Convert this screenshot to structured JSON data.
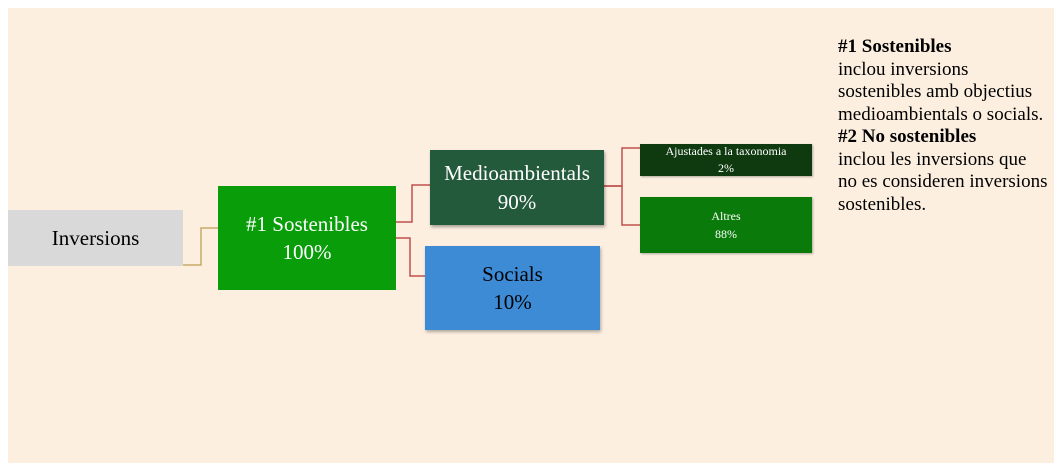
{
  "diagram": {
    "root": {
      "label": "Inversions"
    },
    "sustainable": {
      "label": "#1 Sostenibles",
      "value": "100%"
    },
    "environmental": {
      "label": "Medioambientals",
      "value": "90%"
    },
    "social": {
      "label": "Socials",
      "value": "10%"
    },
    "taxonomy_aligned": {
      "label": "Ajustades a la taxonomia",
      "value": "2%"
    },
    "other": {
      "label": "Altres",
      "value": "88%"
    }
  },
  "legend": {
    "item1_title": "#1 Sostenibles",
    "item1_text": "inclou inversions sostenibles amb objectius medioambientals o socials.",
    "item2_title": "#2 No sostenibles",
    "item2_text": "inclou les inversions que no es consideren inversions sostenibles."
  },
  "colors": {
    "background": "#fcefe0",
    "root": "#d9d9d9",
    "sustainable": "#0a9d0a",
    "environmental": "#245a3c",
    "social": "#3d8ad5",
    "taxonomy_aligned": "#0f3a10",
    "other": "#0a7a0a",
    "connector_root": "#c9a96a",
    "connector_branches": "#c0504d"
  }
}
